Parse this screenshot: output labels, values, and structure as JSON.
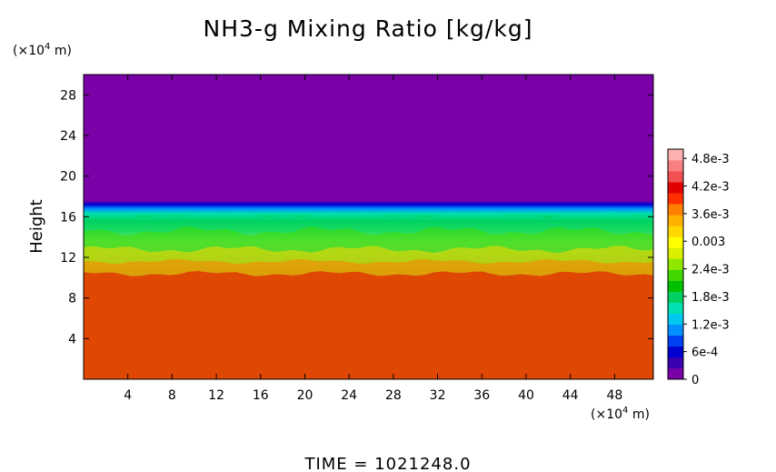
{
  "chart_data": {
    "type": "heatmap",
    "title": "NH3-g Mixing Ratio [kg/kg]",
    "xlabel": "",
    "ylabel": "Height",
    "x_unit_prefix": "(×10",
    "x_unit_exp": "4",
    "x_unit_suffix": " m)",
    "y_unit_prefix": "(×10",
    "y_unit_exp": "4",
    "y_unit_suffix": " m)",
    "xlim": [
      0,
      51.5
    ],
    "ylim": [
      0,
      30
    ],
    "x_ticks": [
      4,
      8,
      12,
      16,
      20,
      24,
      28,
      32,
      36,
      40,
      44,
      48
    ],
    "y_ticks": [
      4,
      8,
      12,
      16,
      20,
      24,
      28
    ],
    "colorbar": {
      "min": 0,
      "max": 0.005,
      "labels": [
        {
          "value": 0,
          "text": "0"
        },
        {
          "value": 0.0006,
          "text": "6e-4"
        },
        {
          "value": 0.0012,
          "text": "1.2e-3"
        },
        {
          "value": 0.0018,
          "text": "1.8e-3"
        },
        {
          "value": 0.0024,
          "text": "2.4e-3"
        },
        {
          "value": 0.003,
          "text": "0.003"
        },
        {
          "value": 0.0036,
          "text": "3.6e-3"
        },
        {
          "value": 0.0042,
          "text": "4.2e-3"
        },
        {
          "value": 0.0048,
          "text": "4.8e-3"
        }
      ],
      "colors": [
        "#7a00a8",
        "#3a00b0",
        "#0000d0",
        "#0040f0",
        "#0090ff",
        "#00c8f0",
        "#00e0b0",
        "#00d060",
        "#00c000",
        "#40d800",
        "#90e800",
        "#d8f000",
        "#ffff00",
        "#ffd800",
        "#ffb000",
        "#ff8000",
        "#ff3000",
        "#e00000",
        "#f05050",
        "#f88080",
        "#ffb0b0"
      ]
    },
    "profile": [
      {
        "height": 0,
        "value": 0.00425
      },
      {
        "height": 10,
        "value": 0.00425
      },
      {
        "height": 10.8,
        "value": 0.0039
      },
      {
        "height": 11.6,
        "value": 0.0036
      },
      {
        "height": 12.6,
        "value": 0.0033
      },
      {
        "height": 13.6,
        "value": 0.0027
      },
      {
        "height": 14.6,
        "value": 0.0023
      },
      {
        "height": 15.6,
        "value": 0.002
      },
      {
        "height": 16.3,
        "value": 0.0016
      },
      {
        "height": 16.8,
        "value": 0.0011
      },
      {
        "height": 17.2,
        "value": 0.0006
      },
      {
        "height": 17.6,
        "value": 0.0002
      },
      {
        "height": 18,
        "value": 0
      },
      {
        "height": 30,
        "value": 0
      }
    ],
    "footer": "TIME  =  1021248.0"
  }
}
